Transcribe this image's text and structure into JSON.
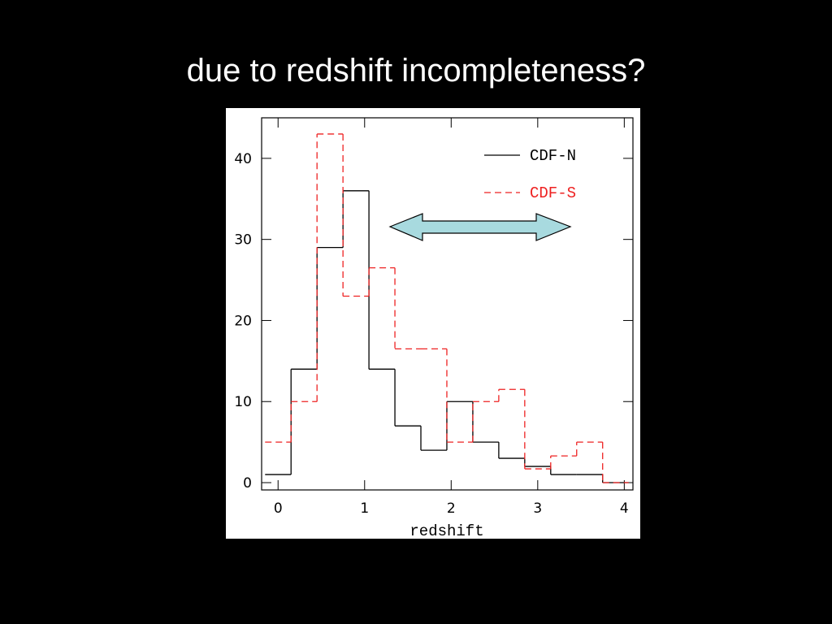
{
  "chart_data": {
    "type": "histogram",
    "title": "due to redshift incompleteness?",
    "x_label": "redshift",
    "bins": [
      -0.15,
      0.15,
      0.45,
      0.75,
      1.05,
      1.35,
      1.65,
      1.95,
      2.25,
      2.55,
      2.85,
      3.15,
      3.45,
      3.75,
      4.05
    ],
    "series": [
      {
        "name": "CDF-N",
        "color": "#000000",
        "dash": "solid",
        "values": [
          1,
          14,
          29,
          36,
          14,
          7,
          4,
          10,
          5,
          3,
          2,
          1,
          1,
          0
        ]
      },
      {
        "name": "CDF-S",
        "color": "#ee2222",
        "dash": "dashed",
        "values": [
          5,
          10,
          43,
          23,
          26.5,
          16.5,
          16.5,
          5,
          10,
          11.5,
          1.7,
          3.3,
          5,
          0
        ]
      }
    ],
    "xlim": [
      -0.19,
      4.1
    ],
    "ylim": [
      -0.9,
      45
    ],
    "xticks": [
      0,
      1,
      2,
      3,
      4
    ],
    "yticks": [
      0,
      10,
      20,
      30,
      40
    ],
    "legend": "upper right"
  }
}
